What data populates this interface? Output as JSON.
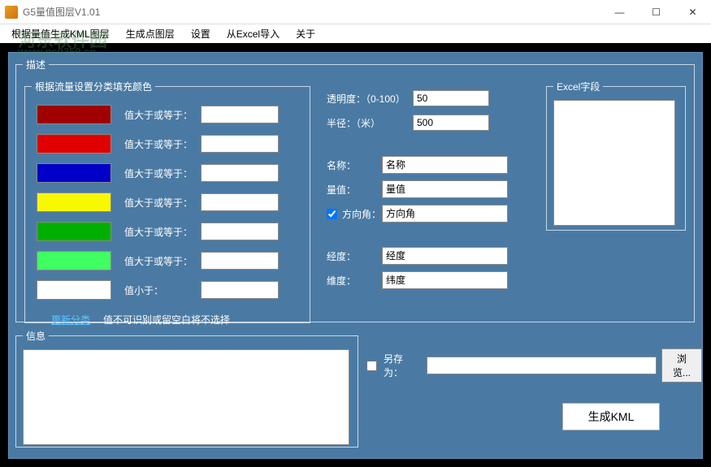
{
  "window": {
    "title": "G5量值图层V1.01",
    "watermark1": "河东软件园",
    "watermark2": "www.pc0359.cn"
  },
  "winbtns": {
    "min": "—",
    "max": "☐",
    "close": "✕"
  },
  "menu": {
    "items": [
      "根据量值生成KML图层",
      "生成点图层",
      "设置",
      "从Excel导入",
      "关于"
    ]
  },
  "desc": {
    "legend": "描述",
    "colors_legend": "根据流量设置分类填充颜色",
    "rows": [
      {
        "color": "#a00000",
        "label": "值大于或等于：",
        "value": ""
      },
      {
        "color": "#e00000",
        "label": "值大于或等于：",
        "value": ""
      },
      {
        "color": "#0000c8",
        "label": "值大于或等于：",
        "value": ""
      },
      {
        "color": "#f8f800",
        "label": "值大于或等于：",
        "value": ""
      },
      {
        "color": "#00b000",
        "label": "值大于或等于：",
        "value": ""
      },
      {
        "color": "#40ff60",
        "label": "值大于或等于：",
        "value": ""
      },
      {
        "color": "#ffffff",
        "label": "值小于：",
        "value": ""
      }
    ],
    "update_link": "更新分类",
    "note": "值不可识别或留空白将不选择"
  },
  "mid": {
    "opacity_label": "透明度：（0-100）",
    "opacity_value": "50",
    "radius_label": "半径：（米）",
    "radius_value": "500",
    "name_label": "名称：",
    "name_value": "名称",
    "amount_label": "量值：",
    "amount_value": "量值",
    "dir_label": "方向角：",
    "dir_value": "方向角",
    "dir_checked": true,
    "lon_label": "经度：",
    "lon_value": "经度",
    "lat_label": "维度：",
    "lat_value": "纬度"
  },
  "excel": {
    "legend": "Excel字段"
  },
  "info": {
    "legend": "信息",
    "text": ""
  },
  "saveas": {
    "label": "另存为：",
    "value": "",
    "browse": "浏览...",
    "checked": false
  },
  "generate": "生成KML",
  "colors": {
    "panel_bg": "#4a7aa3",
    "border": "#c8d8e8"
  }
}
